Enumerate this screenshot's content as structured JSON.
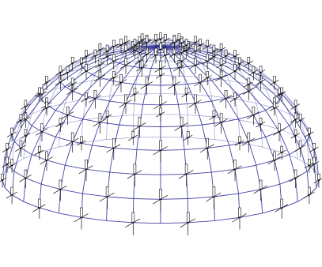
{
  "viewport": {
    "background": "#ffffff"
  },
  "model": {
    "type": "geodesic-dome-wireframe",
    "rings": 9,
    "meridians": 36,
    "colors": {
      "member": "#3a3aa0",
      "support": "#111111",
      "support_fill": "#ffffff"
    }
  }
}
